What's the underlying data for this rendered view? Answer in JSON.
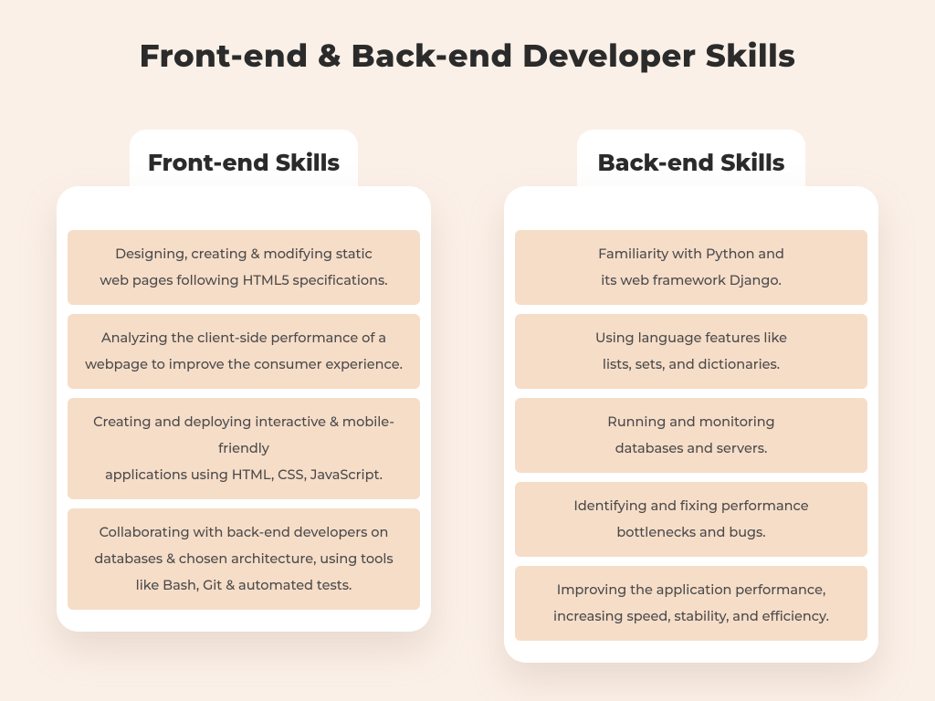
{
  "page": {
    "title": "Front-end & Back-end Developer Skills",
    "background_color": "#fbf0e8",
    "card_background": "#ffffff",
    "item_background": "#f6ddc8",
    "title_color": "#2b2b2b",
    "title_fontsize": 34
  },
  "columns": [
    {
      "id": "frontend",
      "heading": "Front-end Skills",
      "items": [
        {
          "lines": [
            "Designing, creating & modifying static",
            "web pages following HTML5 specifications."
          ]
        },
        {
          "lines": [
            "Analyzing the client-side performance of a",
            "webpage to improve the consumer experience."
          ]
        },
        {
          "lines": [
            "Creating and deploying interactive & mobile-friendly",
            "applications using HTML, CSS, JavaScript."
          ]
        },
        {
          "lines": [
            "Collaborating with back-end developers on",
            "databases & chosen architecture, using tools",
            "like Bash, Git & automated tests."
          ]
        }
      ]
    },
    {
      "id": "backend",
      "heading": "Back-end Skills",
      "items": [
        {
          "lines": [
            "Familiarity with Python and",
            "its web framework Django."
          ]
        },
        {
          "lines": [
            "Using language features like",
            "lists, sets, and dictionaries."
          ]
        },
        {
          "lines": [
            "Running and monitoring",
            "databases and servers."
          ]
        },
        {
          "lines": [
            "Identifying and fixing performance",
            "bottlenecks and bugs."
          ]
        },
        {
          "lines": [
            "Improving the application performance,",
            "increasing speed, stability, and efficiency."
          ]
        }
      ]
    }
  ]
}
